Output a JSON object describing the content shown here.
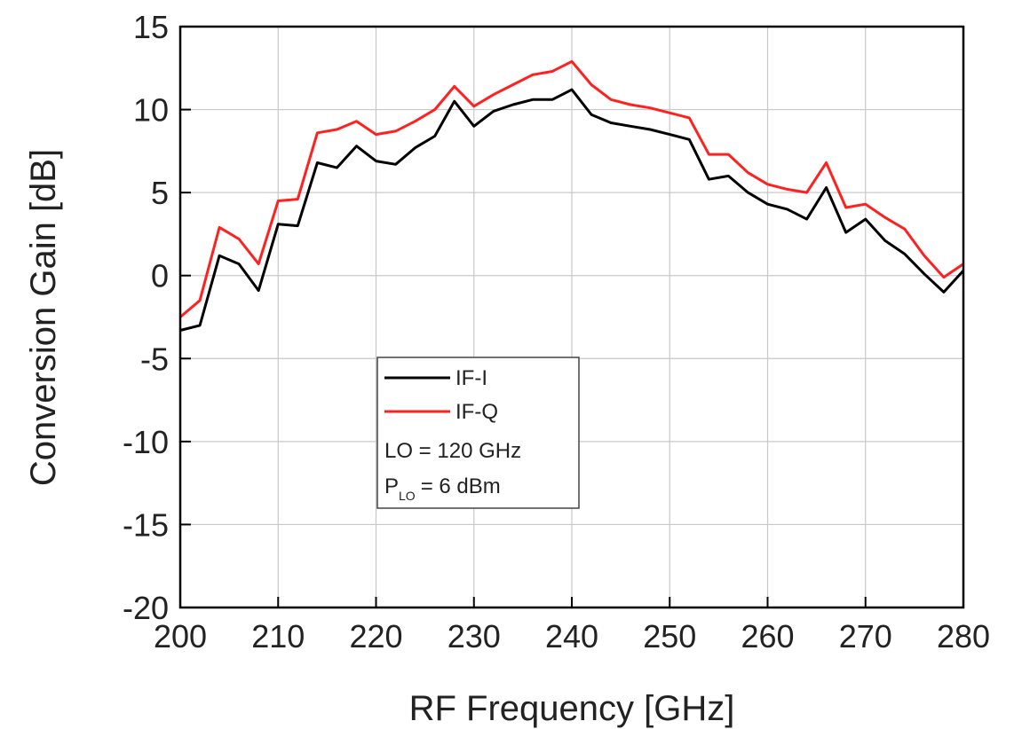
{
  "chart_data": {
    "type": "line",
    "xlabel": "RF Frequency [GHz]",
    "ylabel": "Conversion Gain [dB]",
    "x": [
      200,
      202,
      204,
      206,
      208,
      210,
      212,
      214,
      216,
      218,
      220,
      222,
      224,
      226,
      228,
      230,
      232,
      234,
      236,
      238,
      240,
      242,
      244,
      246,
      248,
      250,
      252,
      254,
      256,
      258,
      260,
      262,
      264,
      266,
      268,
      270,
      272,
      274,
      276,
      278,
      280
    ],
    "series": [
      {
        "name": "IF-I",
        "color": "#000000",
        "values": [
          -3.3,
          -3.0,
          1.2,
          0.7,
          -0.9,
          3.1,
          3.0,
          6.8,
          6.5,
          7.8,
          6.9,
          6.7,
          7.7,
          8.4,
          10.5,
          9.0,
          9.9,
          10.3,
          10.6,
          10.6,
          11.2,
          9.7,
          9.2,
          9.0,
          8.8,
          8.5,
          8.2,
          5.8,
          6.0,
          5.0,
          4.3,
          4.0,
          3.4,
          5.3,
          2.6,
          3.4,
          2.1,
          1.3,
          0.1,
          -1.0,
          0.3
        ]
      },
      {
        "name": "IF-Q",
        "color": "#ff2020",
        "values": [
          -2.5,
          -1.5,
          2.9,
          2.2,
          0.7,
          4.5,
          4.6,
          8.6,
          8.8,
          9.3,
          8.5,
          8.7,
          9.3,
          10.0,
          11.4,
          10.2,
          10.9,
          11.5,
          12.1,
          12.3,
          12.9,
          11.5,
          10.6,
          10.3,
          10.1,
          9.8,
          9.5,
          7.3,
          7.3,
          6.2,
          5.5,
          5.2,
          5.0,
          6.8,
          4.1,
          4.3,
          3.5,
          2.8,
          1.2,
          -0.1,
          0.7
        ]
      }
    ],
    "annotations": [
      "LO = 120 GHz",
      [
        "P",
        "LO",
        "= 6 dBm"
      ]
    ],
    "xlim": [
      200,
      280
    ],
    "xticks": [
      200,
      210,
      220,
      230,
      240,
      250,
      260,
      270,
      280
    ],
    "ylim": [
      -20,
      15
    ],
    "yticks": [
      -20,
      -15,
      -10,
      -5,
      0,
      5,
      10,
      15
    ],
    "grid": true
  }
}
